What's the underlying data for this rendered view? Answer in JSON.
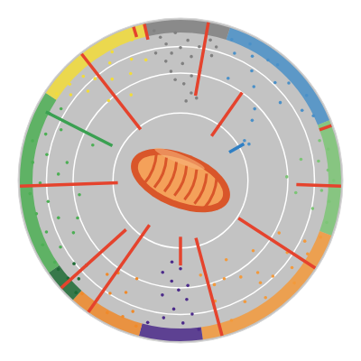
{
  "chart_data": {
    "type": "circular_manhattan",
    "ylim": [
      0,
      10
    ],
    "yticks": [
      2.5,
      5,
      8.75
    ],
    "grid": true,
    "tick_labels": false,
    "segments": [
      {
        "color": "#808080",
        "start": -13,
        "end": 18,
        "points": [
          [
            -10,
            0.8
          ],
          [
            -8,
            1.5
          ],
          [
            -6,
            2.2
          ],
          [
            -4,
            3.1
          ],
          [
            -2,
            1.2
          ],
          [
            0,
            2.6
          ],
          [
            1,
            4.1
          ],
          [
            3,
            1.9
          ],
          [
            5,
            3.4
          ],
          [
            6,
            5.2
          ],
          [
            8,
            2.4
          ],
          [
            10,
            4.6
          ],
          [
            12,
            1.6
          ],
          [
            14,
            3.0
          ],
          [
            -11,
            2.9
          ],
          [
            -5,
            4.8
          ],
          [
            2,
            6.0
          ],
          [
            7,
            6.8
          ],
          [
            -3,
            5.6
          ],
          [
            11,
            7.2
          ],
          [
            15,
            2.1
          ],
          [
            -7,
            3.8
          ],
          [
            4,
            7.6
          ]
        ]
      },
      {
        "color": "#4a90c8",
        "start": 18,
        "end": 68,
        "points": [
          [
            20,
            1.0
          ],
          [
            23,
            2.1
          ],
          [
            27,
            0.7
          ],
          [
            30,
            1.6
          ],
          [
            33,
            2.8
          ],
          [
            36,
            1.1
          ],
          [
            40,
            0.9
          ],
          [
            44,
            2.3
          ],
          [
            48,
            1.4
          ],
          [
            52,
            3.2
          ],
          [
            56,
            0.8
          ],
          [
            60,
            1.9
          ],
          [
            64,
            1.2
          ],
          [
            25,
            4.5
          ],
          [
            38,
            3.9
          ],
          [
            46,
            5.4
          ],
          [
            58,
            8.0
          ],
          [
            62,
            7.8
          ],
          [
            50,
            6.3
          ],
          [
            35,
            8.6
          ]
        ]
      },
      {
        "color": "#7cc576",
        "start": 68,
        "end": 110,
        "points": [
          [
            70,
            0.6
          ],
          [
            74,
            1.5
          ],
          [
            78,
            0.9
          ],
          [
            82,
            2.0
          ],
          [
            86,
            1.2
          ],
          [
            90,
            0.7
          ],
          [
            94,
            1.8
          ],
          [
            98,
            1.0
          ],
          [
            102,
            2.4
          ],
          [
            106,
            0.8
          ],
          [
            80,
            3.6
          ],
          [
            96,
            4.2
          ],
          [
            88,
            5.1
          ]
        ]
      },
      {
        "color": "#f39a3c",
        "start": 110,
        "end": 172,
        "points": [
          [
            112,
            0.9
          ],
          [
            116,
            2.1
          ],
          [
            120,
            1.3
          ],
          [
            124,
            3.0
          ],
          [
            128,
            1.8
          ],
          [
            132,
            0.7
          ],
          [
            136,
            2.6
          ],
          [
            140,
            3.8
          ],
          [
            144,
            1.5
          ],
          [
            148,
            4.4
          ],
          [
            152,
            2.2
          ],
          [
            156,
            5.0
          ],
          [
            160,
            1.1
          ],
          [
            164,
            3.3
          ],
          [
            168,
            6.0
          ],
          [
            118,
            4.6
          ],
          [
            134,
            5.6
          ],
          [
            150,
            6.5
          ],
          [
            142,
            2.9
          ],
          [
            162,
            4.8
          ]
        ]
      },
      {
        "color": "#4b2a8a",
        "start": 172,
        "end": 195,
        "points": [
          [
            173,
            1.0
          ],
          [
            175,
            2.5
          ],
          [
            177,
            3.9
          ],
          [
            179,
            1.7
          ],
          [
            181,
            4.8
          ],
          [
            183,
            3.0
          ],
          [
            185,
            5.6
          ],
          [
            187,
            2.1
          ],
          [
            189,
            4.2
          ],
          [
            191,
            6.3
          ],
          [
            193,
            1.4
          ],
          [
            180,
            6.8
          ],
          [
            186,
            7.4
          ],
          [
            176,
            5.2
          ]
        ]
      },
      {
        "color": "#f08a2a",
        "start": 195,
        "end": 222,
        "points": [
          [
            197,
            0.8
          ],
          [
            200,
            2.0
          ],
          [
            203,
            1.2
          ],
          [
            206,
            3.4
          ],
          [
            209,
            0.9
          ],
          [
            212,
            2.6
          ],
          [
            215,
            1.5
          ],
          [
            218,
            3.9
          ],
          [
            221,
            1.0
          ],
          [
            204,
            5.0
          ],
          [
            214,
            4.6
          ]
        ]
      },
      {
        "color": "#1e6b35",
        "start": 222,
        "end": 235,
        "points": [
          [
            223,
            0.7
          ],
          [
            226,
            1.8
          ],
          [
            229,
            1.1
          ],
          [
            232,
            2.4
          ],
          [
            234,
            0.9
          ],
          [
            228,
            3.2
          ]
        ]
      },
      {
        "color": "#4daf55",
        "start": 235,
        "end": 303,
        "points": [
          [
            237,
            1.0
          ],
          [
            241,
            2.2
          ],
          [
            245,
            0.8
          ],
          [
            249,
            1.6
          ],
          [
            253,
            3.1
          ],
          [
            257,
            1.2
          ],
          [
            261,
            2.5
          ],
          [
            265,
            0.9
          ],
          [
            269,
            1.9
          ],
          [
            273,
            3.6
          ],
          [
            277,
            1.1
          ],
          [
            281,
            2.3
          ],
          [
            285,
            0.7
          ],
          [
            289,
            1.7
          ],
          [
            293,
            2.9
          ],
          [
            297,
            1.3
          ],
          [
            301,
            2.0
          ],
          [
            250,
            4.8
          ],
          [
            262,
            5.5
          ],
          [
            279,
            4.3
          ],
          [
            292,
            6.2
          ],
          [
            244,
            3.9
          ]
        ]
      },
      {
        "color": "#f2dc3a",
        "start": 303,
        "end": 347,
        "points": [
          [
            305,
            0.9
          ],
          [
            308,
            2.0
          ],
          [
            311,
            1.3
          ],
          [
            314,
            3.0
          ],
          [
            317,
            1.7
          ],
          [
            320,
            2.6
          ],
          [
            323,
            1.0
          ],
          [
            326,
            3.6
          ],
          [
            329,
            2.2
          ],
          [
            332,
            1.4
          ],
          [
            335,
            4.0
          ],
          [
            338,
            2.8
          ],
          [
            341,
            1.1
          ],
          [
            344,
            3.3
          ],
          [
            318,
            5.0
          ],
          [
            330,
            5.8
          ]
        ]
      }
    ],
    "hits": {
      "colors": [
        "#e5432d",
        "#e5432d",
        "#e5432d",
        "#2f7fc4",
        "#e5432d",
        "#e5432d",
        "#e5432d",
        "#e5432d",
        "#e5432d",
        "#e5432d",
        "#e5432d",
        "#e5432d",
        "#3aa051",
        "#e5432d",
        "#e5432d"
      ],
      "values": [
        [
          347,
          0,
          1.5
        ],
        [
          10,
          0,
          7.0
        ],
        [
          35,
          5,
          10
        ],
        [
          60,
          8.2,
          9.8
        ],
        [
          70,
          0,
          1.2
        ],
        [
          92,
          0,
          4.2
        ],
        [
          123,
          0,
          8.6
        ],
        [
          165,
          0,
          9.5
        ],
        [
          180,
          7.1,
          9.8
        ],
        [
          215,
          0,
          10
        ],
        [
          228,
          0,
          8.2
        ],
        [
          268,
          0,
          9.2
        ],
        [
          297,
          0.9,
          7.9
        ],
        [
          322,
          0,
          9.0
        ],
        [
          343,
          0,
          1.0
        ]
      ]
    }
  }
}
